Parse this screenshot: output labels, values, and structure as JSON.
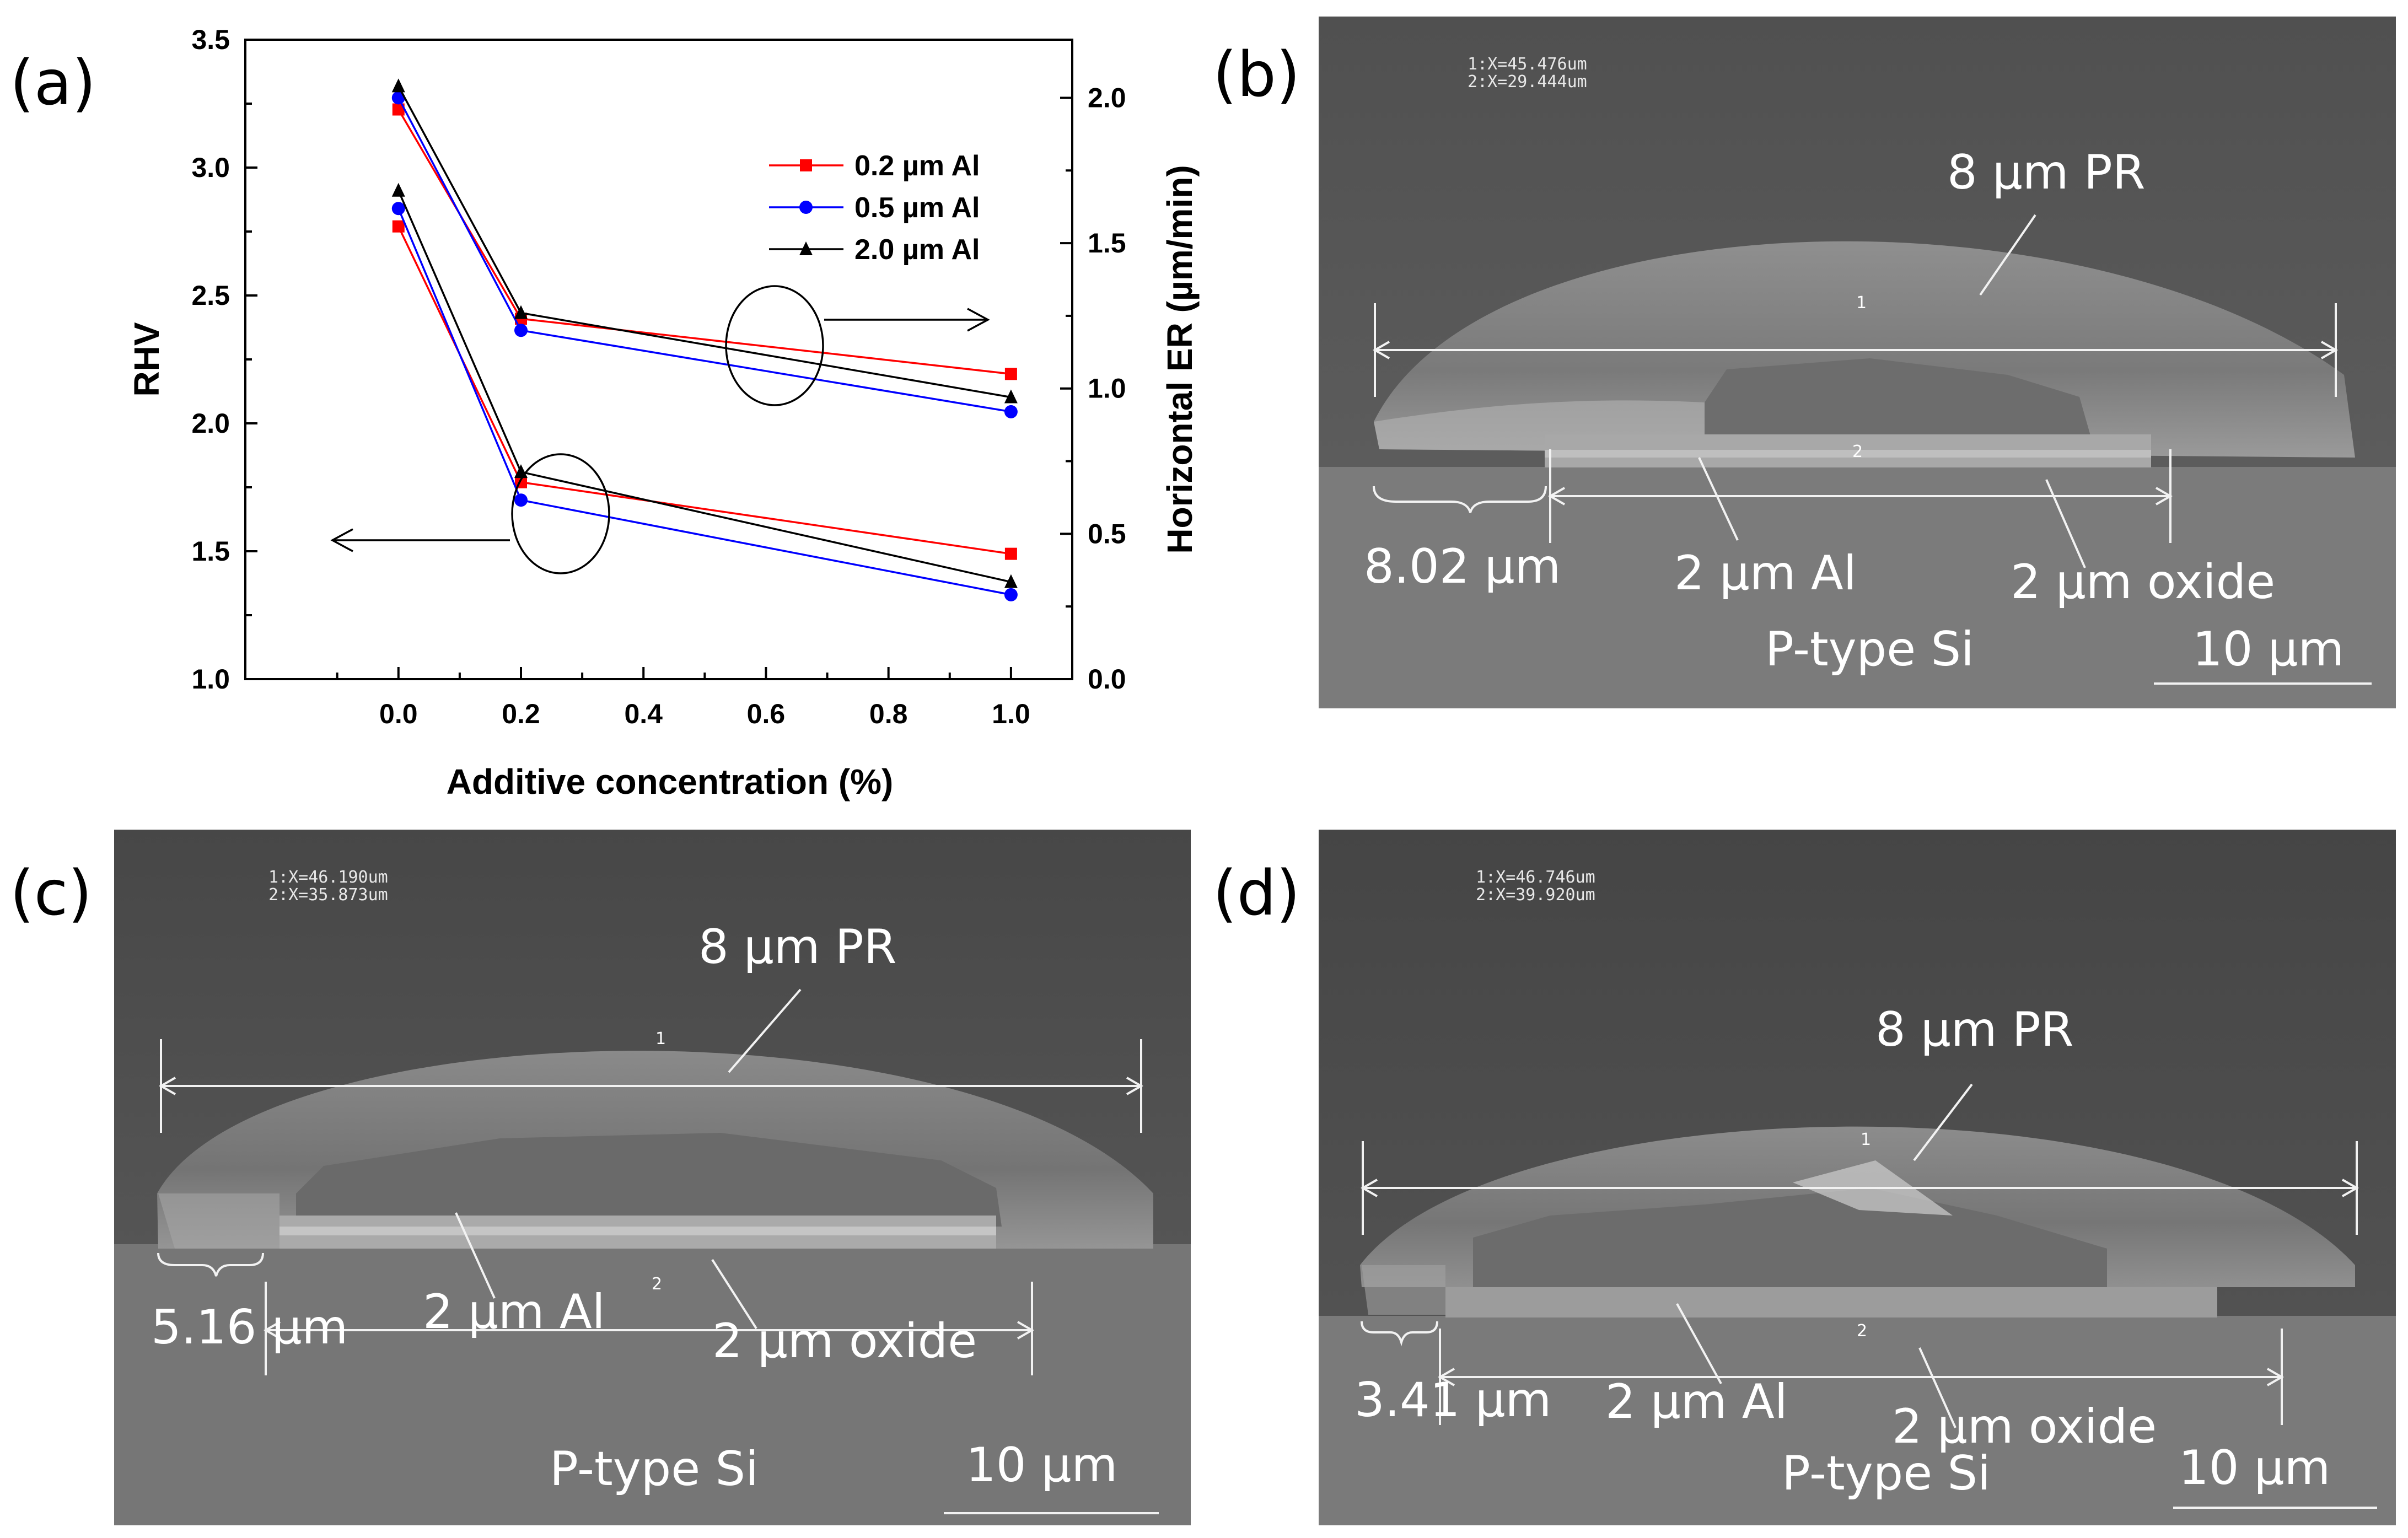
{
  "panels": {
    "a": {
      "letter": "(a)"
    },
    "b": {
      "letter": "(b)",
      "readout": [
        "1:X=45.476um",
        "2:X=29.444um"
      ],
      "labels": {
        "pr": "8 µm PR",
        "undercut": "8.02 µm",
        "al": "2 µm Al",
        "oxide": "2 µm oxide",
        "substrate": "P-type Si",
        "scale": "10 µm",
        "marker1": "1",
        "marker2": "2"
      }
    },
    "c": {
      "letter": "(c)",
      "readout": [
        "1:X=46.190um",
        "2:X=35.873um"
      ],
      "labels": {
        "pr": "8 µm PR",
        "undercut": "5.16 µm",
        "al": "2 µm Al",
        "oxide": "2 µm oxide",
        "substrate": "P-type Si",
        "scale": "10 µm",
        "marker1": "1",
        "marker2": "2"
      }
    },
    "d": {
      "letter": "(d)",
      "readout": [
        "1:X=46.746um",
        "2:X=39.920um"
      ],
      "labels": {
        "pr": "8 µm PR",
        "undercut": "3.41 µm",
        "al": "2 µm Al",
        "oxide": "2 µm oxide",
        "substrate": "P-type Si",
        "scale": "10 µm",
        "marker1": "1",
        "marker2": "2"
      }
    }
  },
  "chart_data": {
    "type": "line",
    "xlabel": "Additive concentration (%)",
    "ylabel": "RHV",
    "y2label": "Horizontal ER (µm/min)",
    "xlim": [
      -0.25,
      1.1
    ],
    "ylim": [
      1.0,
      3.5
    ],
    "y2lim": [
      0.0,
      2.2
    ],
    "x_ticks": [
      "0.0",
      "0.2",
      "0.4",
      "0.6",
      "0.8",
      "1.0"
    ],
    "y_ticks": [
      "1.0",
      "1.5",
      "2.0",
      "2.5",
      "3.0",
      "3.5"
    ],
    "y2_ticks": [
      "0.0",
      "0.5",
      "1.0",
      "1.5",
      "2.0"
    ],
    "x": [
      0.0,
      0.2,
      1.0
    ],
    "legend_position": "top-right",
    "series": [
      {
        "name": "0.2 µm Al",
        "color": "#ff0000",
        "marker": "square",
        "rhv": [
          2.77,
          1.77,
          1.49
        ],
        "er": [
          1.96,
          1.24,
          1.05
        ]
      },
      {
        "name": "0.5 µm Al",
        "color": "#0000ff",
        "marker": "circle",
        "rhv": [
          2.84,
          1.7,
          1.33
        ],
        "er": [
          2.0,
          1.2,
          0.92
        ]
      },
      {
        "name": "2.0 µm Al",
        "color": "#000000",
        "marker": "triangle",
        "rhv": [
          2.91,
          1.81,
          1.38
        ],
        "er": [
          2.04,
          1.26,
          0.97
        ]
      }
    ]
  }
}
